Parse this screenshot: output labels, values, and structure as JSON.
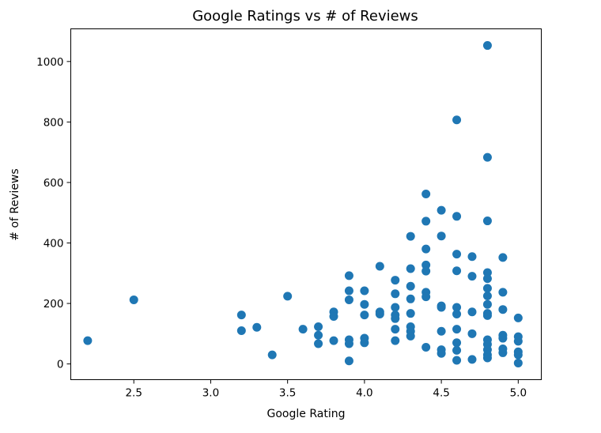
{
  "chart_data": {
    "type": "scatter",
    "title": "Google Ratings vs # of Reviews",
    "xlabel": "Google Rating",
    "ylabel": "# of Reviews",
    "xlim": [
      2.09,
      5.15
    ],
    "ylim": [
      -52,
      1108
    ],
    "xticks": [
      2.5,
      3.0,
      3.5,
      4.0,
      4.5,
      5.0
    ],
    "xtick_labels": [
      "2.5",
      "3.0",
      "3.5",
      "4.0",
      "4.5",
      "5.0"
    ],
    "yticks": [
      0,
      200,
      400,
      600,
      800,
      1000
    ],
    "ytick_labels": [
      "0",
      "200",
      "400",
      "600",
      "800",
      "1000"
    ],
    "marker_color": "#1f77b4",
    "grid": false,
    "legend": "none",
    "points": [
      [
        2.2,
        77
      ],
      [
        2.5,
        212
      ],
      [
        3.2,
        162
      ],
      [
        3.2,
        110
      ],
      [
        3.3,
        121
      ],
      [
        3.4,
        30
      ],
      [
        3.5,
        224
      ],
      [
        3.6,
        115
      ],
      [
        3.7,
        123
      ],
      [
        3.7,
        95
      ],
      [
        3.7,
        67
      ],
      [
        3.8,
        172
      ],
      [
        3.8,
        157
      ],
      [
        3.8,
        77
      ],
      [
        3.9,
        292
      ],
      [
        3.9,
        242
      ],
      [
        3.9,
        212
      ],
      [
        3.9,
        80
      ],
      [
        3.9,
        67
      ],
      [
        3.9,
        10
      ],
      [
        4.0,
        242
      ],
      [
        4.0,
        197
      ],
      [
        4.0,
        162
      ],
      [
        4.0,
        85
      ],
      [
        4.0,
        70
      ],
      [
        4.1,
        323
      ],
      [
        4.1,
        172
      ],
      [
        4.1,
        165
      ],
      [
        4.2,
        277
      ],
      [
        4.2,
        232
      ],
      [
        4.2,
        187
      ],
      [
        4.2,
        162
      ],
      [
        4.2,
        150
      ],
      [
        4.2,
        115
      ],
      [
        4.2,
        77
      ],
      [
        4.3,
        422
      ],
      [
        4.3,
        315
      ],
      [
        4.3,
        257
      ],
      [
        4.3,
        215
      ],
      [
        4.3,
        167
      ],
      [
        4.3,
        123
      ],
      [
        4.3,
        108
      ],
      [
        4.3,
        92
      ],
      [
        4.4,
        562
      ],
      [
        4.4,
        472
      ],
      [
        4.4,
        380
      ],
      [
        4.4,
        327
      ],
      [
        4.4,
        307
      ],
      [
        4.4,
        237
      ],
      [
        4.4,
        222
      ],
      [
        4.4,
        55
      ],
      [
        4.5,
        508
      ],
      [
        4.5,
        423
      ],
      [
        4.5,
        192
      ],
      [
        4.5,
        187
      ],
      [
        4.5,
        108
      ],
      [
        4.5,
        47
      ],
      [
        4.5,
        35
      ],
      [
        4.6,
        807
      ],
      [
        4.6,
        488
      ],
      [
        4.6,
        363
      ],
      [
        4.6,
        308
      ],
      [
        4.6,
        187
      ],
      [
        4.6,
        165
      ],
      [
        4.6,
        115
      ],
      [
        4.6,
        70
      ],
      [
        4.6,
        45
      ],
      [
        4.6,
        12
      ],
      [
        4.7,
        355
      ],
      [
        4.7,
        290
      ],
      [
        4.7,
        172
      ],
      [
        4.7,
        100
      ],
      [
        4.7,
        15
      ],
      [
        4.8,
        1053
      ],
      [
        4.8,
        683
      ],
      [
        4.8,
        473
      ],
      [
        4.8,
        302
      ],
      [
        4.8,
        282
      ],
      [
        4.8,
        250
      ],
      [
        4.8,
        225
      ],
      [
        4.8,
        197
      ],
      [
        4.8,
        167
      ],
      [
        4.8,
        160
      ],
      [
        4.8,
        80
      ],
      [
        4.8,
        65
      ],
      [
        4.8,
        47
      ],
      [
        4.8,
        30
      ],
      [
        4.8,
        20
      ],
      [
        4.9,
        352
      ],
      [
        4.9,
        237
      ],
      [
        4.9,
        180
      ],
      [
        4.9,
        95
      ],
      [
        4.9,
        85
      ],
      [
        4.9,
        50
      ],
      [
        4.9,
        37
      ],
      [
        5.0,
        152
      ],
      [
        5.0,
        90
      ],
      [
        5.0,
        75
      ],
      [
        5.0,
        40
      ],
      [
        5.0,
        30
      ],
      [
        5.0,
        3
      ]
    ]
  }
}
